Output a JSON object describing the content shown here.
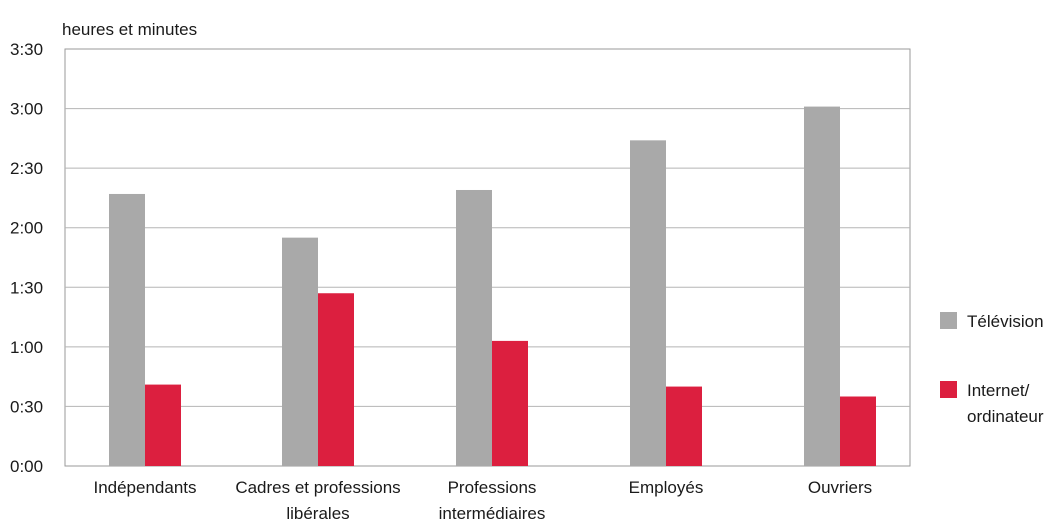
{
  "chart_data": {
    "type": "bar",
    "ylabel": "heures et minutes",
    "xlabel": "",
    "title": "",
    "ylim": [
      0,
      210
    ],
    "y_tick_values": [
      0,
      30,
      60,
      90,
      120,
      150,
      180,
      210
    ],
    "y_tick_labels": [
      "0:00",
      "0:30",
      "1:00",
      "1:30",
      "2:00",
      "2:30",
      "3:00",
      "3:30"
    ],
    "categories": [
      [
        "Indépendants"
      ],
      [
        "Cadres et professions",
        "libérales"
      ],
      [
        "Professions",
        "intermédiaires"
      ],
      [
        "Employés"
      ],
      [
        "Ouvriers"
      ]
    ],
    "series": [
      {
        "name": "Télévision",
        "color": "#a9a9a9",
        "values": [
          137,
          115,
          139,
          164,
          181
        ]
      },
      {
        "name": "Internet/ ordinateur",
        "legend_lines": [
          "Internet/",
          "ordinateur"
        ],
        "color": "#dc1f3f",
        "values": [
          41,
          87,
          63,
          40,
          35
        ]
      }
    ],
    "grid": true,
    "legend_position": "right"
  }
}
